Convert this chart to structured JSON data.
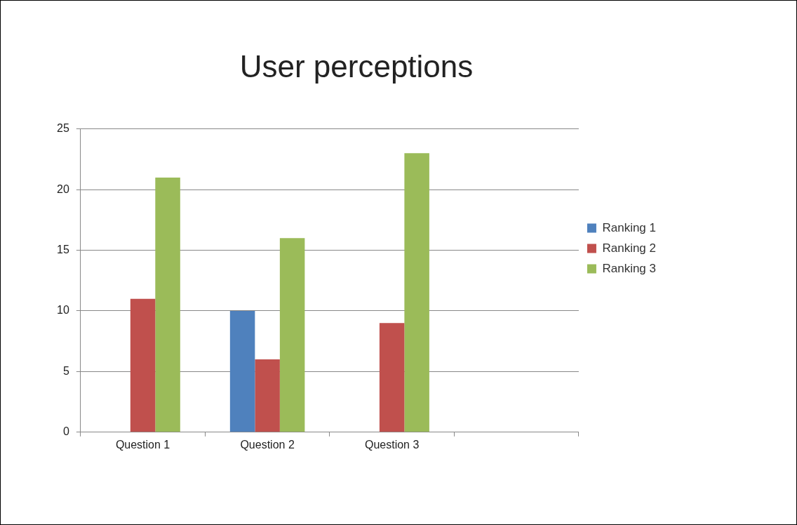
{
  "chart_data": {
    "type": "bar",
    "title": "User perceptions",
    "categories": [
      "Question 1",
      "Question 2",
      "Question 3",
      null
    ],
    "series": [
      {
        "name": "Ranking 1",
        "color": "#4f81bd",
        "values": [
          0,
          10,
          0,
          null
        ]
      },
      {
        "name": "Ranking 2",
        "color": "#c0504d",
        "values": [
          11,
          6,
          9,
          null
        ]
      },
      {
        "name": "Ranking 3",
        "color": "#9bbb59",
        "values": [
          21,
          16,
          23,
          null
        ]
      }
    ],
    "ylim": [
      0,
      25
    ],
    "yticks": [
      0,
      5,
      10,
      15,
      20,
      25
    ],
    "grid": "y",
    "legend": "right"
  }
}
